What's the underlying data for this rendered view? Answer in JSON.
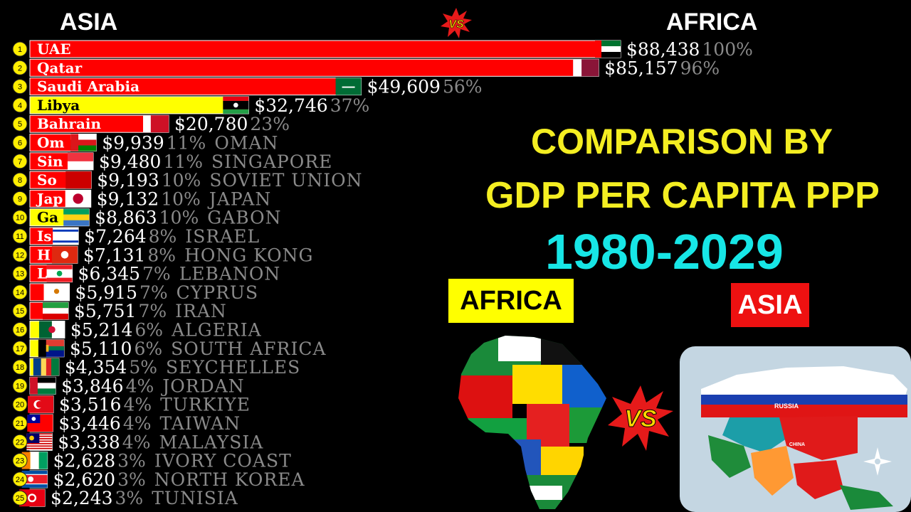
{
  "header": {
    "left": "ASIA",
    "vs": "VS",
    "right": "AFRICA"
  },
  "title": {
    "line1": "COMPARISON BY",
    "line2": "GDP PER CAPITA PPP",
    "line3": "1980-2029"
  },
  "tags": {
    "africa": "AFRICA",
    "asia": "ASIA"
  },
  "map_labels": {
    "russia": "RUSSIA",
    "china": "CHINA"
  },
  "colors": {
    "bar_red": "#ff0000",
    "bar_yellow": "#ffff00",
    "rank_circle": "#ffee00",
    "value_text": "#ffffff",
    "pct_text": "#8a8a8a",
    "title_yellow": "#f4ee22",
    "title_cyan": "#17e6e6"
  },
  "chart_data": {
    "type": "bar",
    "orientation": "horizontal",
    "title": "COMPARISON BY GDP PER CAPITA PPP 1980-2029",
    "xlim": [
      0,
      88438
    ],
    "rows": [
      {
        "rank": "1",
        "name": "UAE",
        "short": "UAE",
        "value": 88438,
        "value_label": "$88,438",
        "pct": "100%",
        "color": "red",
        "flag": "uae"
      },
      {
        "rank": "2",
        "name": "Qatar",
        "short": "Qatar",
        "value": 85157,
        "value_label": "$85,157",
        "pct": "96%",
        "color": "red",
        "flag": "qatar"
      },
      {
        "rank": "3",
        "name": "Saudi Arabia",
        "short": "Saudi Arabia",
        "value": 49609,
        "value_label": "$49,609",
        "pct": "56%",
        "color": "red",
        "flag": "saudi"
      },
      {
        "rank": "4",
        "name": "Libya",
        "short": "Libya",
        "value": 32746,
        "value_label": "$32,746",
        "pct": "37%",
        "color": "yellow",
        "flag": "libya"
      },
      {
        "rank": "5",
        "name": "Bahrain",
        "short": "Bahrain",
        "value": 20780,
        "value_label": "$20,780",
        "pct": "23%",
        "color": "red",
        "flag": "bahrain"
      },
      {
        "rank": "6",
        "name": "OMAN",
        "short": "Om",
        "value": 9939,
        "value_label": "$9,939",
        "pct": "11%",
        "color": "red",
        "flag": "oman"
      },
      {
        "rank": "7",
        "name": "SINGAPORE",
        "short": "Sin",
        "value": 9480,
        "value_label": "$9,480",
        "pct": "11%",
        "color": "red",
        "flag": "singapore"
      },
      {
        "rank": "8",
        "name": "SOVIET UNION",
        "short": "So",
        "value": 9193,
        "value_label": "$9,193",
        "pct": "10%",
        "color": "red",
        "flag": "soviet"
      },
      {
        "rank": "9",
        "name": "JAPAN",
        "short": "Jap",
        "value": 9132,
        "value_label": "$9,132",
        "pct": "10%",
        "color": "red",
        "flag": "japan"
      },
      {
        "rank": "10",
        "name": "GABON",
        "short": "Ga",
        "value": 8863,
        "value_label": "$8,863",
        "pct": "10%",
        "color": "yellow",
        "flag": "gabon"
      },
      {
        "rank": "11",
        "name": "ISRAEL",
        "short": "Is",
        "value": 7264,
        "value_label": "$7,264",
        "pct": "8%",
        "color": "red",
        "flag": "israel"
      },
      {
        "rank": "12",
        "name": "HONG KONG",
        "short": "H",
        "value": 7131,
        "value_label": "$7,131",
        "pct": "8%",
        "color": "red",
        "flag": "hongkong"
      },
      {
        "rank": "13",
        "name": "LEBANON",
        "short": "L",
        "value": 6345,
        "value_label": "$6,345",
        "pct": "7%",
        "color": "red",
        "flag": "lebanon"
      },
      {
        "rank": "14",
        "name": "CYPRUS",
        "short": "",
        "value": 5915,
        "value_label": "$5,915",
        "pct": "7%",
        "color": "red",
        "flag": "cyprus"
      },
      {
        "rank": "15",
        "name": "IRAN",
        "short": "",
        "value": 5751,
        "value_label": "$5,751",
        "pct": "7%",
        "color": "red",
        "flag": "iran"
      },
      {
        "rank": "16",
        "name": "ALGERIA",
        "short": "",
        "value": 5214,
        "value_label": "$5,214",
        "pct": "6%",
        "color": "yellow",
        "flag": "algeria"
      },
      {
        "rank": "17",
        "name": "SOUTH AFRICA",
        "short": "",
        "value": 5110,
        "value_label": "$5,110",
        "pct": "6%",
        "color": "yellow",
        "flag": "southafrica"
      },
      {
        "rank": "18",
        "name": "SEYCHELLES",
        "short": "",
        "value": 4354,
        "value_label": "$4,354",
        "pct": "5%",
        "color": "yellow",
        "flag": "seychelles"
      },
      {
        "rank": "19",
        "name": "JORDAN",
        "short": "",
        "value": 3846,
        "value_label": "$3,846",
        "pct": "4%",
        "color": "red",
        "flag": "jordan"
      },
      {
        "rank": "20",
        "name": "TURKIYE",
        "short": "",
        "value": 3516,
        "value_label": "$3,516",
        "pct": "4%",
        "color": "red",
        "flag": "turkiye"
      },
      {
        "rank": "21",
        "name": "TAIWAN",
        "short": "",
        "value": 3446,
        "value_label": "$3,446",
        "pct": "4%",
        "color": "red",
        "flag": "taiwan"
      },
      {
        "rank": "22",
        "name": "MALAYSIA",
        "short": "",
        "value": 3338,
        "value_label": "$3,338",
        "pct": "4%",
        "color": "red",
        "flag": "malaysia"
      },
      {
        "rank": "23",
        "name": "IVORY COAST",
        "short": "",
        "value": 2628,
        "value_label": "$2,628",
        "pct": "3%",
        "color": "yellow",
        "flag": "ivorycoast"
      },
      {
        "rank": "24",
        "name": "NORTH KOREA",
        "short": "",
        "value": 2620,
        "value_label": "$2,620",
        "pct": "3%",
        "color": "red",
        "flag": "northkorea"
      },
      {
        "rank": "25",
        "name": "TUNISIA",
        "short": "",
        "value": 2243,
        "value_label": "$2,243",
        "pct": "3%",
        "color": "yellow",
        "flag": "tunisia"
      }
    ]
  }
}
